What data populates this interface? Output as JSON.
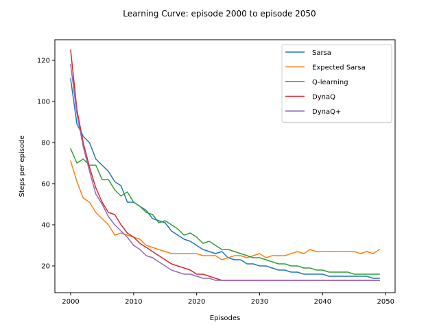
{
  "chart_data": {
    "type": "line",
    "title": "Learning Curve: episode 2000 to episode 2050",
    "xlabel": "Episodes",
    "ylabel": "Steps per episode",
    "xlim": [
      1997.5,
      2051.5
    ],
    "ylim": [
      7,
      130
    ],
    "xticks": [
      2000,
      2010,
      2020,
      2030,
      2040,
      2050
    ],
    "yticks": [
      20,
      40,
      60,
      80,
      100,
      120
    ],
    "grid": false,
    "legend_position": "upper right",
    "x": [
      2000,
      2001,
      2002,
      2003,
      2004,
      2005,
      2006,
      2007,
      2008,
      2009,
      2010,
      2011,
      2012,
      2013,
      2014,
      2015,
      2016,
      2017,
      2018,
      2019,
      2020,
      2021,
      2022,
      2023,
      2024,
      2025,
      2026,
      2027,
      2028,
      2029,
      2030,
      2031,
      2032,
      2033,
      2034,
      2035,
      2036,
      2037,
      2038,
      2039,
      2040,
      2041,
      2042,
      2043,
      2044,
      2045,
      2046,
      2047,
      2048,
      2049
    ],
    "series": [
      {
        "name": "Sarsa",
        "color": "#1f77b4",
        "values": [
          111,
          89,
          83,
          80,
          72,
          69,
          66,
          61,
          59,
          51,
          51,
          49,
          47,
          43,
          42,
          41,
          37,
          35,
          33,
          32,
          30,
          28,
          27,
          26,
          27,
          24,
          23,
          23,
          21,
          21,
          20,
          20,
          19,
          18,
          18,
          17,
          17,
          16,
          16,
          16,
          16,
          15,
          15,
          15,
          15,
          15,
          15,
          15,
          14,
          14
        ]
      },
      {
        "name": "Expected Sarsa",
        "color": "#ff7f0e",
        "values": [
          71,
          61,
          53,
          51,
          46,
          43,
          40,
          35,
          36,
          35,
          34,
          33,
          30,
          29,
          28,
          27,
          26,
          26,
          26,
          26,
          26,
          25,
          25,
          25,
          23,
          24,
          25,
          25,
          24,
          25,
          26,
          24,
          25,
          25,
          25,
          26,
          27,
          26,
          28,
          27,
          27,
          27,
          27,
          27,
          27,
          27,
          26,
          27,
          26,
          28
        ]
      },
      {
        "name": "Q-learning",
        "color": "#2ca02c",
        "values": [
          77,
          70,
          72,
          69,
          69,
          62,
          62,
          57,
          54,
          56,
          51,
          49,
          46,
          45,
          41,
          42,
          40,
          38,
          35,
          36,
          34,
          31,
          32,
          30,
          28,
          28,
          27,
          26,
          25,
          24,
          24,
          23,
          22,
          21,
          21,
          20,
          20,
          19,
          19,
          18,
          18,
          17,
          17,
          17,
          17,
          16,
          16,
          16,
          16,
          16
        ]
      },
      {
        "name": "DynaQ",
        "color": "#d62728",
        "values": [
          125,
          96,
          80,
          68,
          58,
          51,
          46,
          45,
          40,
          36,
          34,
          31,
          29,
          27,
          25,
          23,
          21,
          20,
          19,
          18,
          16,
          16,
          15,
          14,
          13,
          13,
          13,
          13,
          13,
          13,
          13,
          13,
          13,
          13,
          13,
          13,
          13,
          13,
          13,
          13,
          13,
          13,
          13,
          13,
          13,
          13,
          13,
          13,
          13,
          13
        ]
      },
      {
        "name": "DynaQ+",
        "color": "#9467bd",
        "values": [
          118,
          94,
          78,
          66,
          55,
          50,
          44,
          40,
          37,
          34,
          30,
          28,
          25,
          24,
          22,
          20,
          18,
          17,
          16,
          16,
          15,
          14,
          14,
          13,
          13,
          13,
          13,
          13,
          13,
          13,
          13,
          13,
          13,
          13,
          13,
          13,
          13,
          13,
          13,
          13,
          13,
          13,
          13,
          13,
          13,
          13,
          13,
          13,
          13,
          13
        ]
      }
    ]
  }
}
